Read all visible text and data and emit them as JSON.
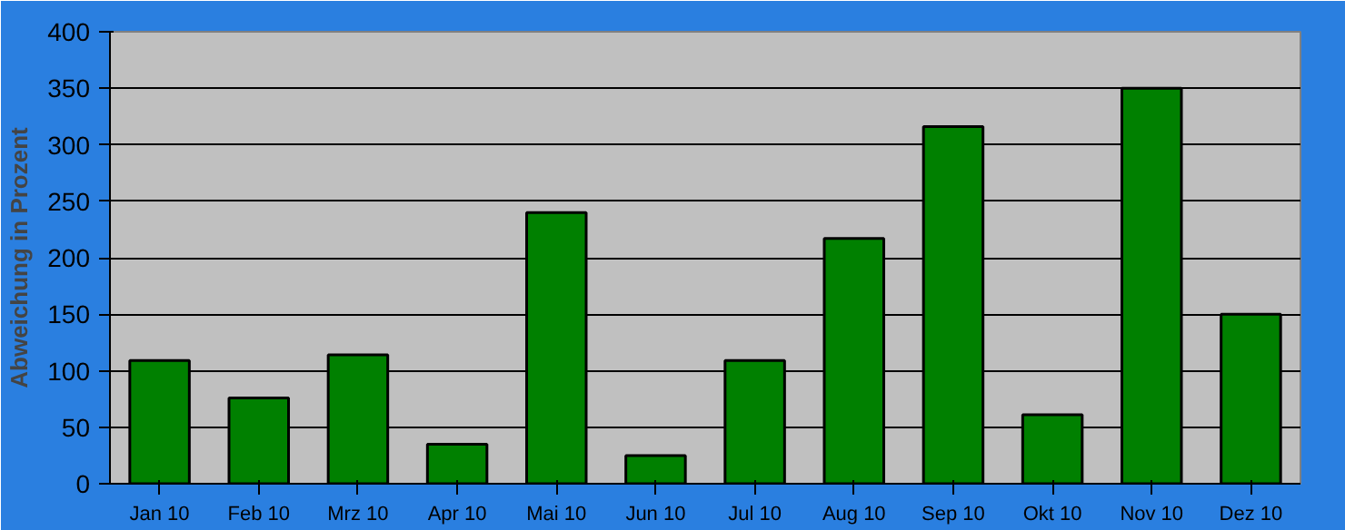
{
  "chart_data": {
    "type": "bar",
    "ylabel": "Abweichung in Prozent",
    "categories": [
      "Jan 10",
      "Feb 10",
      "Mrz 10",
      "Apr 10",
      "Mai 10",
      "Jun 10",
      "Jul 10",
      "Aug 10",
      "Sep 10",
      "Okt 10",
      "Nov 10",
      "Dez 10"
    ],
    "values": [
      109,
      76,
      114,
      35,
      240,
      25,
      109,
      217,
      316,
      61,
      350,
      150
    ],
    "color": "#008000",
    "ylim": [
      0,
      400
    ],
    "yticks": [
      0,
      50,
      100,
      150,
      200,
      250,
      300,
      350,
      400
    ],
    "grid": "y"
  }
}
